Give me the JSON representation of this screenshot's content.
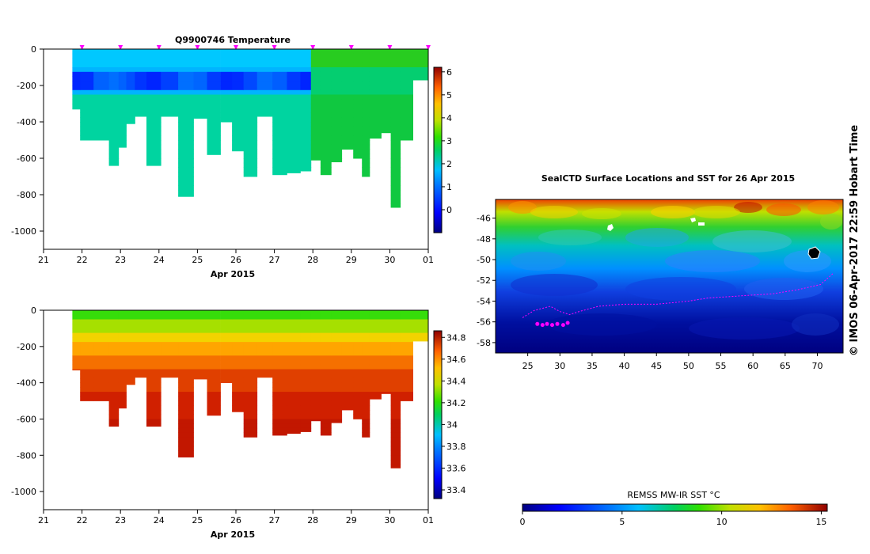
{
  "chart_data": [
    {
      "type": "heatmap",
      "title": "Q9900746  Temperature",
      "variable": "temperature",
      "xlabel": "Apr 2015",
      "x_ticks": [
        "21",
        "22",
        "23",
        "24",
        "25",
        "26",
        "27",
        "28",
        "29",
        "30",
        "01"
      ],
      "xlim": [
        21,
        31
      ],
      "ylabel": "",
      "y_ticks": [
        "0",
        "-200",
        "-400",
        "-600",
        "-800",
        "-1000"
      ],
      "ylim": [
        -1100,
        0
      ],
      "colorbar": {
        "min": -1,
        "max": 6.2,
        "ticks": [
          "0",
          "1",
          "2",
          "3",
          "4",
          "5",
          "6"
        ],
        "tick_values": [
          0,
          1,
          2,
          3,
          4,
          5,
          6
        ]
      },
      "profile_markers": [
        22,
        23,
        24,
        25,
        26,
        27,
        28,
        29,
        30,
        31
      ],
      "profiles": [
        {
          "t": 21.85,
          "depth": 330
        },
        {
          "t": 22.05,
          "depth": 500
        },
        {
          "t": 22.55,
          "depth": 500
        },
        {
          "t": 22.85,
          "depth": 640
        },
        {
          "t": 23.05,
          "depth": 540
        },
        {
          "t": 23.25,
          "depth": 410
        },
        {
          "t": 23.5,
          "depth": 370
        },
        {
          "t": 23.85,
          "depth": 640
        },
        {
          "t": 24.25,
          "depth": 370
        },
        {
          "t": 24.75,
          "depth": 810
        },
        {
          "t": 25.05,
          "depth": 380
        },
        {
          "t": 25.45,
          "depth": 580
        },
        {
          "t": 25.75,
          "depth": 400
        },
        {
          "t": 26.05,
          "depth": 560
        },
        {
          "t": 26.35,
          "depth": 700
        },
        {
          "t": 26.75,
          "depth": 370
        },
        {
          "t": 27.15,
          "depth": 690
        },
        {
          "t": 27.5,
          "depth": 680
        },
        {
          "t": 27.85,
          "depth": 670
        },
        {
          "t": 28.05,
          "depth": 610
        },
        {
          "t": 28.35,
          "depth": 690
        },
        {
          "t": 28.6,
          "depth": 620
        },
        {
          "t": 28.9,
          "depth": 550
        },
        {
          "t": 29.2,
          "depth": 600
        },
        {
          "t": 29.35,
          "depth": 700
        },
        {
          "t": 29.6,
          "depth": 490
        },
        {
          "t": 29.95,
          "depth": 460
        },
        {
          "t": 30.1,
          "depth": 870
        },
        {
          "t": 30.45,
          "depth": 500
        },
        {
          "t": 30.75,
          "depth": 170
        }
      ]
    },
    {
      "type": "heatmap",
      "title": "",
      "variable": "salinity",
      "xlabel": "Apr 2015",
      "x_ticks": [
        "21",
        "22",
        "23",
        "24",
        "25",
        "26",
        "27",
        "28",
        "29",
        "30",
        "01"
      ],
      "xlim": [
        21,
        31
      ],
      "y_ticks": [
        "0",
        "-200",
        "-400",
        "-600",
        "-800",
        "-1000"
      ],
      "ylim": [
        -1100,
        0
      ],
      "colorbar": {
        "min": 33.32,
        "max": 34.86,
        "ticks": [
          "33.4",
          "33.6",
          "33.8",
          "34",
          "34.2",
          "34.4",
          "34.6",
          "34.8"
        ],
        "tick_values": [
          33.4,
          33.6,
          33.8,
          34.0,
          34.2,
          34.4,
          34.6,
          34.8
        ]
      },
      "profiles_same_as_above": true
    },
    {
      "type": "heatmap",
      "title": "SealCTD Surface Locations and SST for 26 Apr 2015",
      "variable": "sea surface temperature map",
      "x_ticks": [
        "25",
        "30",
        "35",
        "40",
        "45",
        "50",
        "55",
        "60",
        "65",
        "70"
      ],
      "xlim": [
        20,
        74
      ],
      "y_ticks": [
        "-46",
        "-48",
        "-50",
        "-52",
        "-54",
        "-56",
        "-58"
      ],
      "ylim": [
        -59,
        -44.2
      ],
      "colorbar": {
        "label": "REMSS MW-IR SST °C",
        "min": 0,
        "max": 15.3,
        "ticks": [
          "0",
          "5",
          "10",
          "15"
        ],
        "tick_values": [
          0,
          5,
          10,
          15
        ]
      },
      "track": [
        {
          "lon": 24.2,
          "lat": -55.6
        },
        {
          "lon": 26.0,
          "lat": -54.9
        },
        {
          "lon": 28.5,
          "lat": -54.5
        },
        {
          "lon": 30.0,
          "lat": -55.0
        },
        {
          "lon": 31.5,
          "lat": -55.3
        },
        {
          "lon": 33.0,
          "lat": -55.0
        },
        {
          "lon": 36.0,
          "lat": -54.5
        },
        {
          "lon": 40.0,
          "lat": -54.3
        },
        {
          "lon": 45.0,
          "lat": -54.3
        },
        {
          "lon": 50.0,
          "lat": -54.0
        },
        {
          "lon": 53.0,
          "lat": -53.7
        },
        {
          "lon": 58.0,
          "lat": -53.5
        },
        {
          "lon": 63.0,
          "lat": -53.3
        },
        {
          "lon": 67.0,
          "lat": -52.9
        },
        {
          "lon": 70.5,
          "lat": -52.4
        },
        {
          "lon": 72.5,
          "lat": -51.3
        }
      ],
      "surface_locations": [
        {
          "lon": 26.5,
          "lat": -56.2
        },
        {
          "lon": 27.3,
          "lat": -56.3
        },
        {
          "lon": 28.0,
          "lat": -56.2
        },
        {
          "lon": 28.8,
          "lat": -56.3
        },
        {
          "lon": 29.6,
          "lat": -56.2
        },
        {
          "lon": 30.5,
          "lat": -56.3
        },
        {
          "lon": 31.2,
          "lat": -56.1
        }
      ]
    }
  ],
  "credit": "© IMOS 06-Apr-2017 22:59 Hobart Time",
  "colors": {
    "marker": "#ff00ff",
    "axis": "#000000"
  },
  "icons": {
    "profile_marker": "triangle-marker-icon"
  }
}
